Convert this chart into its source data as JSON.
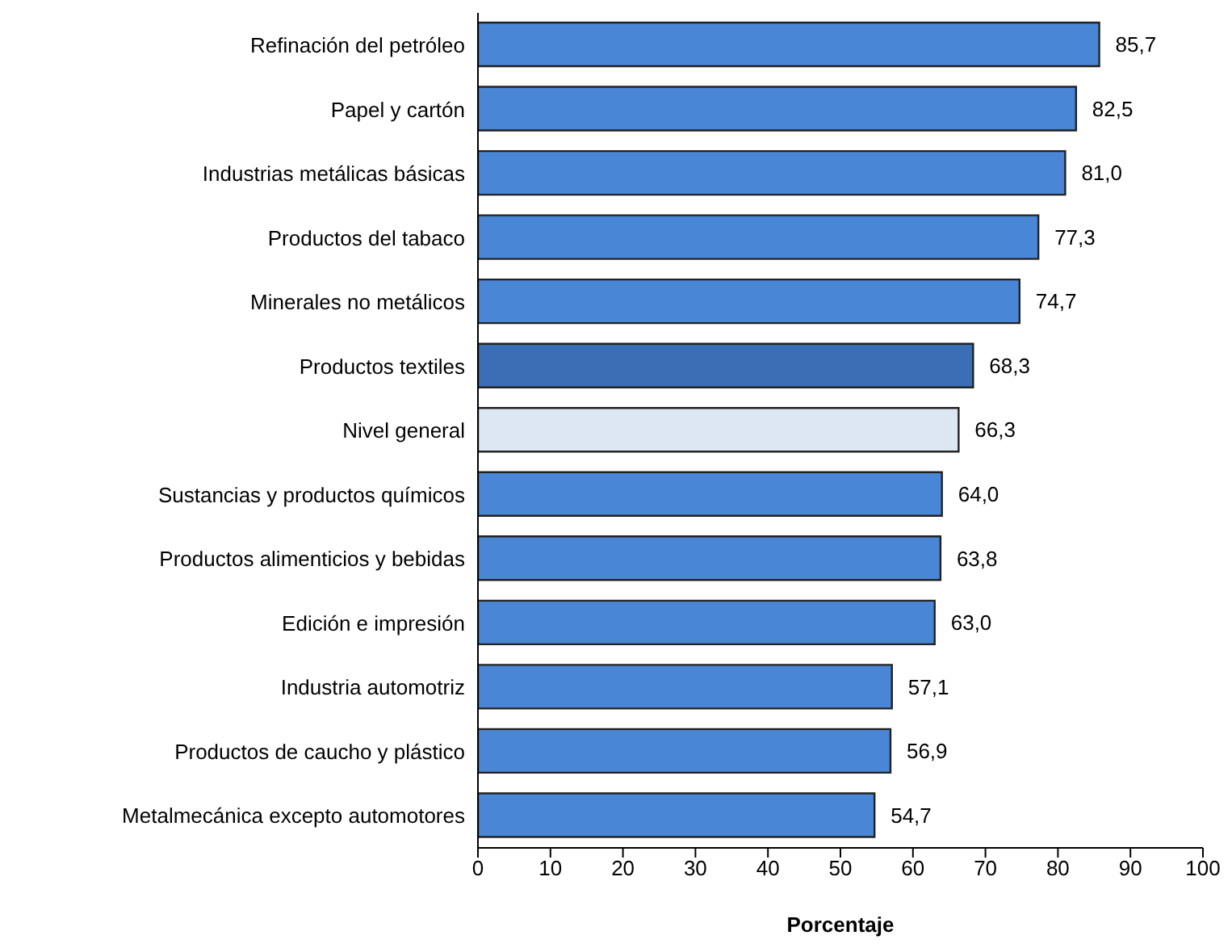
{
  "chart_data": {
    "type": "bar",
    "orientation": "horizontal",
    "xlabel": "Porcentaje",
    "categories": [
      "Refinación del petróleo",
      "Papel y cartón",
      "Industrias metálicas básicas",
      "Productos del tabaco",
      "Minerales no metálicos",
      "Productos textiles",
      "Nivel general",
      "Sustancias y productos  químicos",
      "Productos alimenticios y bebidas",
      "Edición e impresión",
      "Industria automotriz",
      "Productos de caucho y plástico",
      "Metalmecánica excepto automotores"
    ],
    "values": [
      85.7,
      82.5,
      81.0,
      77.3,
      74.7,
      68.3,
      66.3,
      64.0,
      63.8,
      63.0,
      57.1,
      56.9,
      54.7
    ],
    "value_labels": [
      "85,7",
      "82,5",
      "81,0",
      "77,3",
      "74,7",
      "68,3",
      "66,3",
      "64,0",
      "63,8",
      "63,0",
      "57,1",
      "56,9",
      "54,7"
    ],
    "colors": [
      "#4a86d6",
      "#4a86d6",
      "#4a86d6",
      "#4a86d6",
      "#4a86d6",
      "#3b6fb5",
      "#dde7f3",
      "#4a86d6",
      "#4a86d6",
      "#4a86d6",
      "#4a86d6",
      "#4a86d6",
      "#4a86d6"
    ],
    "xlim": [
      0,
      100
    ],
    "xticks": [
      0,
      10,
      20,
      30,
      40,
      50,
      60,
      70,
      80,
      90,
      100
    ],
    "grid": false,
    "legend": false
  }
}
